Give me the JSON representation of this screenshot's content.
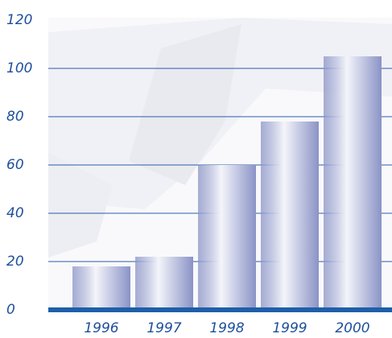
{
  "chart_data": {
    "type": "bar",
    "categories": [
      "1996",
      "1997",
      "1998",
      "1999",
      "2000"
    ],
    "values": [
      18,
      22,
      60,
      78,
      105
    ],
    "color": "#8a93c6",
    "ylim": [
      0,
      120
    ],
    "yticks": [
      0,
      20,
      40,
      60,
      80,
      100,
      120
    ],
    "grid": true
  }
}
